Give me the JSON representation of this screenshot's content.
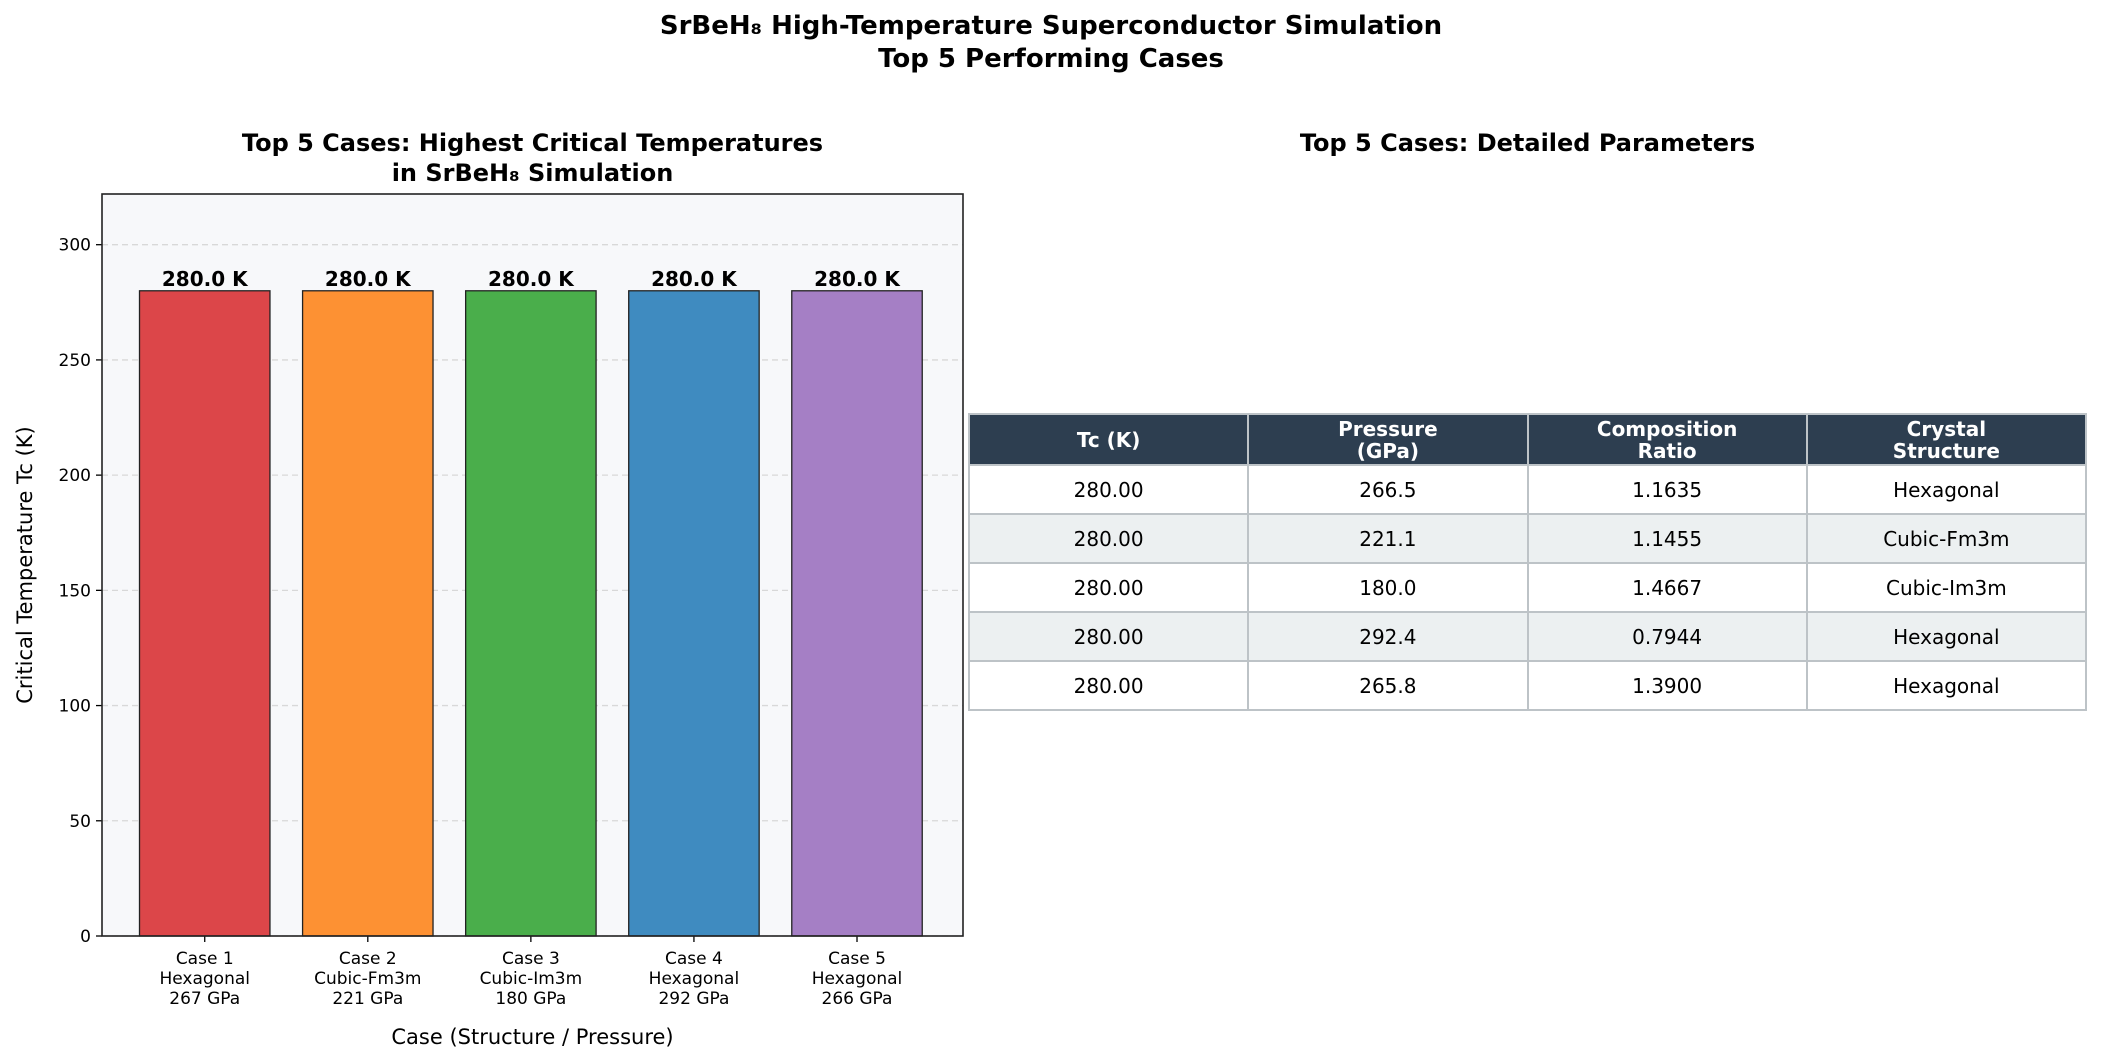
{
  "figure": {
    "title_line1": "SrBeH₈ High-Temperature Superconductor Simulation",
    "title_line2": "Top 5 Performing Cases"
  },
  "chart_data": {
    "type": "bar",
    "title_line1": "Top 5 Cases: Highest Critical Temperatures",
    "title_line2": "in SrBeH₈ Simulation",
    "xlabel": "Case (Structure / Pressure)",
    "ylabel": "Critical Temperature Tc (K)",
    "ylim": [
      0,
      322
    ],
    "yticks": [
      0,
      50,
      100,
      150,
      200,
      250,
      300
    ],
    "grid": "y-dashed",
    "categories": [
      [
        "Case 1",
        "Hexagonal",
        "267 GPa"
      ],
      [
        "Case 2",
        "Cubic-Fm3m",
        "221 GPa"
      ],
      [
        "Case 3",
        "Cubic-Im3m",
        "180 GPa"
      ],
      [
        "Case 4",
        "Hexagonal",
        "292 GPa"
      ],
      [
        "Case 5",
        "Hexagonal",
        "266 GPa"
      ]
    ],
    "values": [
      280.0,
      280.0,
      280.0,
      280.0,
      280.0
    ],
    "data_labels": [
      "280.0 K",
      "280.0 K",
      "280.0 K",
      "280.0 K",
      "280.0 K"
    ],
    "colors": [
      "#dc4649",
      "#fd9133",
      "#4aae4b",
      "#3f8bc0",
      "#a57fc5"
    ],
    "background": "#f7f8fa"
  },
  "table": {
    "title": "Top 5 Cases: Detailed Parameters",
    "headers": [
      [
        "Tc (K)"
      ],
      [
        "Pressure",
        "(GPa)"
      ],
      [
        "Composition",
        "Ratio"
      ],
      [
        "Crystal",
        "Structure"
      ]
    ],
    "rows": [
      [
        "280.00",
        "266.5",
        "1.1635",
        "Hexagonal"
      ],
      [
        "280.00",
        "221.1",
        "1.1455",
        "Cubic-Fm3m"
      ],
      [
        "280.00",
        "180.0",
        "1.4667",
        "Cubic-Im3m"
      ],
      [
        "280.00",
        "292.4",
        "0.7944",
        "Hexagonal"
      ],
      [
        "280.00",
        "265.8",
        "1.3900",
        "Hexagonal"
      ]
    ],
    "header_color": "#2d3e50",
    "alt_row_color": "#ecf0f1"
  }
}
